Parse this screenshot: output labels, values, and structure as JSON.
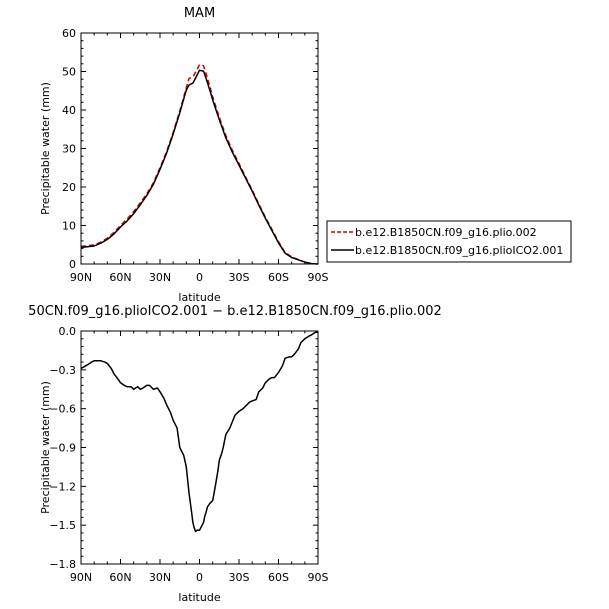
{
  "chart_data": [
    {
      "type": "line",
      "title": "MAM",
      "xlabel": "latitude",
      "ylabel": "Precipitable water (mm)",
      "xlim": [
        90,
        -90
      ],
      "ylim": [
        0,
        60
      ],
      "x_tick_values": [
        90,
        60,
        30,
        0,
        -30,
        -60,
        -90
      ],
      "x_tick_labels": [
        "90N",
        "60N",
        "30N",
        "0",
        "30S",
        "60S",
        "90S"
      ],
      "y_ticks": [
        0,
        10,
        20,
        30,
        40,
        50,
        60
      ],
      "legend_position": "right",
      "series": [
        {
          "name": "b.e12.B1850CN.f09_g16.plio.002",
          "color": "#d40000",
          "dash": "dashed",
          "x": [
            90,
            85,
            80,
            75,
            70,
            65,
            60,
            55,
            50,
            45,
            40,
            35,
            30,
            25,
            20,
            15,
            10,
            8,
            5,
            3,
            0,
            -3,
            -5,
            -8,
            -10,
            -15,
            -20,
            -25,
            -30,
            -35,
            -40,
            -45,
            -50,
            -55,
            -60,
            -65,
            -70,
            -75,
            -80,
            -85,
            -90
          ],
          "y": [
            4.6,
            4.7,
            5.0,
            5.7,
            6.7,
            8.2,
            10.0,
            11.7,
            13.6,
            15.9,
            18.2,
            21.1,
            25.0,
            29.2,
            34.2,
            39.8,
            45.8,
            48.2,
            48.6,
            49.8,
            51.8,
            51.5,
            49.4,
            46.0,
            43.4,
            38.1,
            33.4,
            29.5,
            26.1,
            22.6,
            19.2,
            15.6,
            12.2,
            9.0,
            5.8,
            3.0,
            1.8,
            1.2,
            0.5,
            0.1,
            0.0
          ]
        },
        {
          "name": "b.e12.B1850CN.f09_g16.plioICO2.001",
          "color": "#000000",
          "dash": "solid",
          "x": [
            90,
            85,
            80,
            75,
            70,
            65,
            60,
            55,
            50,
            45,
            40,
            35,
            30,
            25,
            20,
            15,
            10,
            8,
            5,
            3,
            0,
            -3,
            -5,
            -8,
            -10,
            -15,
            -20,
            -25,
            -30,
            -35,
            -40,
            -45,
            -50,
            -55,
            -60,
            -65,
            -70,
            -75,
            -80,
            -85,
            -90
          ],
          "y": [
            4.3,
            4.5,
            4.7,
            5.4,
            6.4,
            7.8,
            9.6,
            11.2,
            13.1,
            15.4,
            17.8,
            20.7,
            24.6,
            28.8,
            33.8,
            39.3,
            45.2,
            46.5,
            47.0,
            48.3,
            50.3,
            50.1,
            48.2,
            45.0,
            42.6,
            37.5,
            32.8,
            29.0,
            25.7,
            22.3,
            18.9,
            15.3,
            11.9,
            8.7,
            5.5,
            2.8,
            1.7,
            1.1,
            0.5,
            0.1,
            0.0
          ]
        }
      ]
    },
    {
      "type": "line",
      "title": "50CN.f09_g16.plioICO2.001 − b.e12.B1850CN.f09_g16.plio.002",
      "xlabel": "latitude",
      "ylabel": "Precipitable water (mm)",
      "xlim": [
        90,
        -90
      ],
      "ylim": [
        -1.8,
        0.0
      ],
      "x_tick_values": [
        90,
        60,
        30,
        0,
        -30,
        -60,
        -90
      ],
      "x_tick_labels": [
        "90N",
        "60N",
        "30N",
        "0",
        "30S",
        "60S",
        "90S"
      ],
      "y_ticks": [
        -1.8,
        -1.5,
        -1.2,
        -0.9,
        -0.6,
        -0.3,
        0.0
      ],
      "y_tick_labels": [
        "−1.8",
        "−1.5",
        "−1.2",
        "−0.9",
        "−0.6",
        "−0.3",
        "0.0"
      ],
      "series": [
        {
          "color": "#000000",
          "dash": "solid",
          "x": [
            90,
            85,
            82,
            80,
            77,
            75,
            72,
            70,
            67,
            65,
            62,
            60,
            57,
            55,
            52,
            50,
            47,
            45,
            43,
            40,
            38,
            35,
            32,
            30,
            27,
            25,
            22,
            20,
            17,
            15,
            12,
            10,
            8,
            6,
            5,
            4,
            3,
            2,
            1,
            0,
            -1,
            -2,
            -3,
            -4,
            -5,
            -6,
            -8,
            -10,
            -12,
            -14,
            -15,
            -17,
            -18,
            -20,
            -23,
            -25,
            -27,
            -30,
            -33,
            -35,
            -38,
            -40,
            -43,
            -45,
            -48,
            -50,
            -53,
            -55,
            -57,
            -60,
            -63,
            -65,
            -68,
            -70,
            -72,
            -75,
            -77,
            -80,
            -83,
            -85,
            -88,
            -90
          ],
          "y": [
            -0.29,
            -0.26,
            -0.24,
            -0.23,
            -0.23,
            -0.23,
            -0.24,
            -0.25,
            -0.29,
            -0.33,
            -0.37,
            -0.4,
            -0.42,
            -0.43,
            -0.43,
            -0.45,
            -0.43,
            -0.45,
            -0.44,
            -0.42,
            -0.42,
            -0.45,
            -0.44,
            -0.47,
            -0.52,
            -0.57,
            -0.63,
            -0.69,
            -0.75,
            -0.9,
            -0.96,
            -1.05,
            -1.25,
            -1.4,
            -1.48,
            -1.52,
            -1.55,
            -1.54,
            -1.54,
            -1.54,
            -1.52,
            -1.5,
            -1.48,
            -1.43,
            -1.4,
            -1.36,
            -1.33,
            -1.31,
            -1.2,
            -1.08,
            -1.0,
            -0.94,
            -0.9,
            -0.8,
            -0.75,
            -0.7,
            -0.65,
            -0.62,
            -0.6,
            -0.58,
            -0.55,
            -0.54,
            -0.53,
            -0.47,
            -0.44,
            -0.4,
            -0.37,
            -0.36,
            -0.36,
            -0.32,
            -0.27,
            -0.21,
            -0.2,
            -0.2,
            -0.18,
            -0.14,
            -0.09,
            -0.06,
            -0.04,
            -0.03,
            -0.01,
            -0.01
          ]
        }
      ]
    }
  ]
}
